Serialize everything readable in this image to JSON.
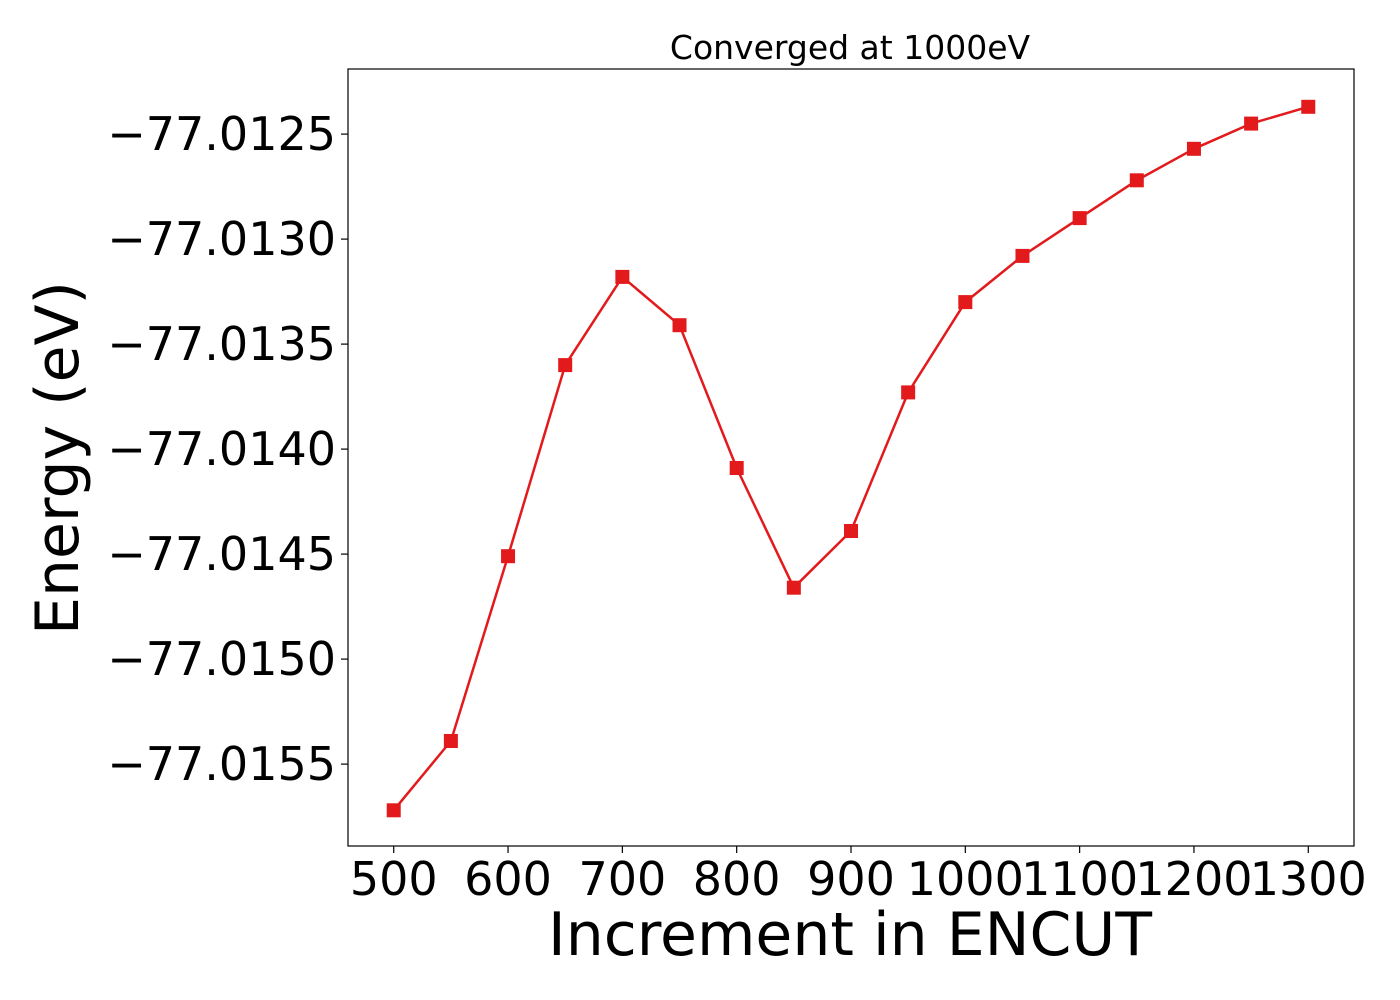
{
  "chart_data": {
    "type": "line",
    "title": "Converged at 1000eV",
    "xlabel": "Increment in ENCUT",
    "ylabel": "Energy (eV)",
    "x": [
      500,
      550,
      600,
      650,
      700,
      750,
      800,
      850,
      900,
      950,
      1000,
      1050,
      1100,
      1150,
      1200,
      1250,
      1300
    ],
    "series": [
      {
        "values": [
          -77.01572,
          -77.01539,
          -77.01451,
          -77.0136,
          -77.01318,
          -77.01341,
          -77.01409,
          -77.01466,
          -77.01439,
          -77.01373,
          -77.0133,
          -77.01308,
          -77.0129,
          -77.01272,
          -77.01257,
          -77.01245,
          -77.01237
        ]
      }
    ],
    "xticks": [
      500,
      600,
      700,
      800,
      900,
      1000,
      1100,
      1200,
      1300
    ],
    "xtick_labels": [
      "500",
      "600",
      "700",
      "800",
      "900",
      "1000",
      "1100",
      "1200",
      "1300"
    ],
    "yticks": [
      -77.0155,
      -77.015,
      -77.0145,
      -77.014,
      -77.0135,
      -77.013,
      -77.0125
    ],
    "ytick_labels": [
      "−77.0155",
      "−77.0150",
      "−77.0145",
      "−77.0140",
      "−77.0135",
      "−77.0130",
      "−77.0125"
    ],
    "xlim": [
      460,
      1340
    ],
    "ylim": [
      -77.01589,
      -77.01219
    ],
    "grid": false,
    "line_color": "#e31a1c",
    "marker": "square"
  }
}
